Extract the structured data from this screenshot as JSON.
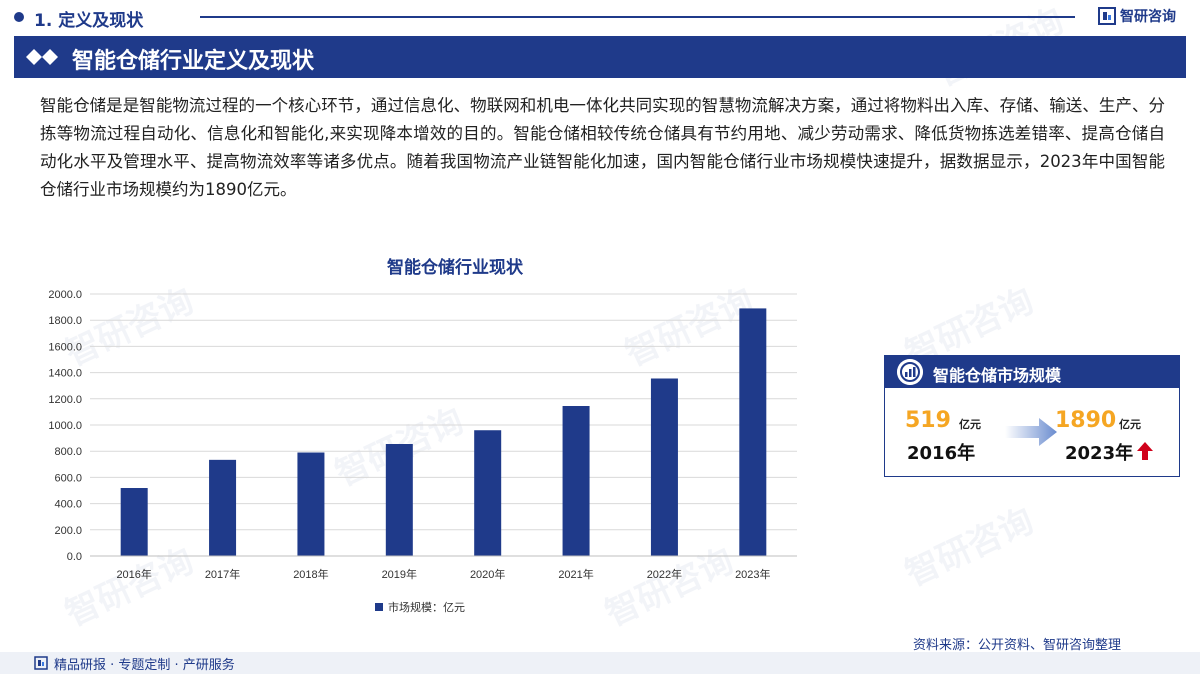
{
  "header": {
    "section_title": "1. 定义及现状",
    "brand": "智研咨询"
  },
  "banner": {
    "title": "智能仓储行业定义及现状"
  },
  "intro": "智能仓储是是智能物流过程的一个核心环节，通过信息化、物联网和机电一体化共同实现的智慧物流解决方案，通过将物料出入库、存储、输送、生产、分拣等物流过程自动化、信息化和智能化,来实现降本增效的目的。智能仓储相较传统仓储具有节约用地、减少劳动需求、降低货物拣选差错率、提高仓储自动化水平及管理水平、提高物流效率等诸多优点。随着我国物流产业链智能化加速，国内智能仓储行业市场规模快速提升，据数据显示，2023年中国智能仓储行业市场规模约为1890亿元。",
  "watermark": "智研咨询",
  "chart_data": {
    "type": "bar",
    "title": "智能仓储行业现状",
    "categories": [
      "2016年",
      "2017年",
      "2018年",
      "2019年",
      "2020年",
      "2021年",
      "2022年",
      "2023年"
    ],
    "series": [
      {
        "name": "市场规模：亿元",
        "values": [
          519,
          734,
          790,
          855,
          960,
          1145,
          1355,
          1890
        ],
        "color": "#1f3a8a"
      }
    ],
    "ylim": [
      0,
      2000
    ],
    "yticks": [
      "0.0",
      "200.0",
      "400.0",
      "600.0",
      "800.0",
      "1000.0",
      "1200.0",
      "1400.0",
      "1600.0",
      "1800.0",
      "2000.0"
    ],
    "grid": true,
    "legend": "bottom"
  },
  "card": {
    "title": "智能仓储市场规模",
    "start_value": "519",
    "start_unit": "亿元",
    "start_year": "2016年",
    "end_value": "1890",
    "end_unit": "亿元",
    "end_year": "2023年"
  },
  "footer": {
    "source": "资料来源：公开资料、智研咨询整理",
    "slogan": "精品研报 · 专题定制 · 产研服务"
  },
  "colors": {
    "primary": "#1f3a8a",
    "highlight": "#f5a623",
    "up_arrow": "#d0021b"
  }
}
